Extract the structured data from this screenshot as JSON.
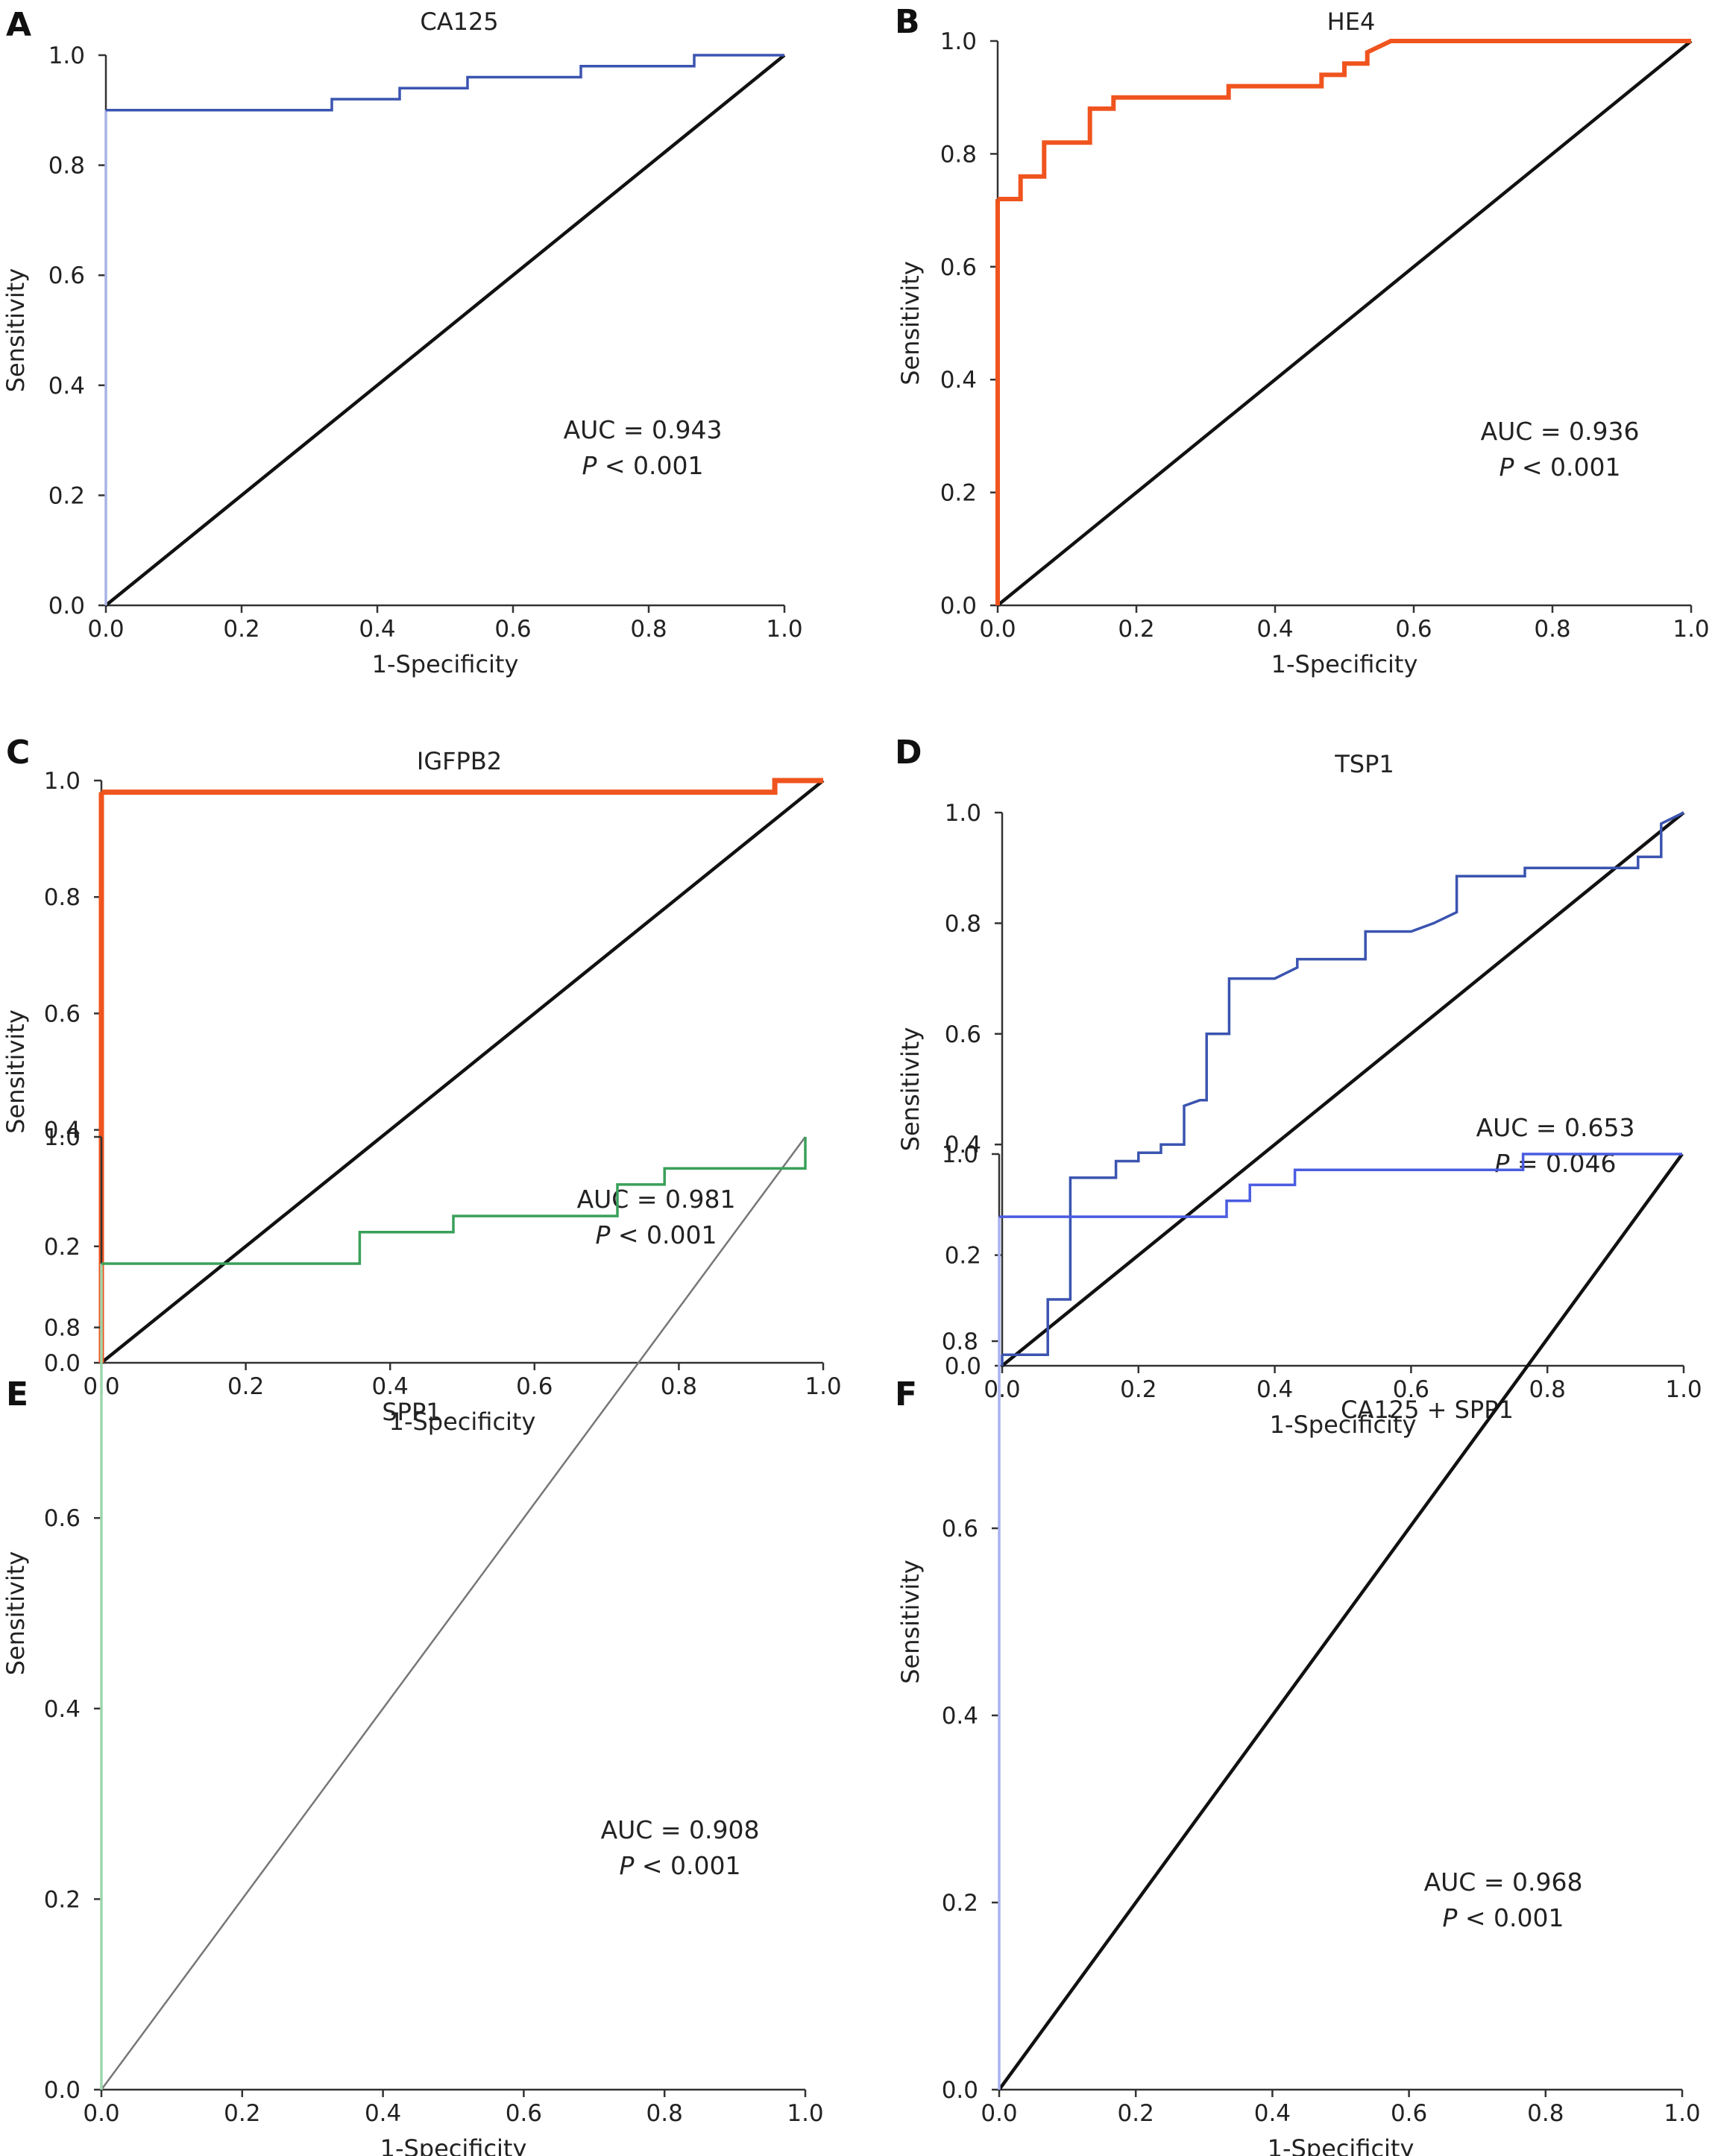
{
  "chart_data": [
    {
      "panel": "A",
      "type": "line",
      "title": "CA125",
      "xlabel": "1-Specificity",
      "ylabel": "Sensitivity",
      "xlim": [
        0,
        1
      ],
      "ylim": [
        0,
        1
      ],
      "xticks": [
        "0.0",
        "0.2",
        "0.4",
        "0.6",
        "0.8",
        "1.0"
      ],
      "yticks": [
        "0.0",
        "0.2",
        "0.4",
        "0.6",
        "0.8",
        "1.0"
      ],
      "auc_label": "AUC = 0.943",
      "p_prefix": "P",
      "p_suffix": " < 0.001",
      "curve_color": "#3b54b0",
      "vertical_color": "#a8b4e4",
      "curve_width": 3.5,
      "diagonal_color": "#111111",
      "roc": [
        [
          0,
          0
        ],
        [
          0,
          0.9
        ],
        [
          0.333,
          0.9
        ],
        [
          0.333,
          0.92
        ],
        [
          0.433,
          0.92
        ],
        [
          0.433,
          0.94
        ],
        [
          0.533,
          0.94
        ],
        [
          0.533,
          0.96
        ],
        [
          0.7,
          0.96
        ],
        [
          0.7,
          0.98
        ],
        [
          0.867,
          0.98
        ],
        [
          0.867,
          1.0
        ],
        [
          1.0,
          1.0
        ]
      ]
    },
    {
      "panel": "B",
      "type": "line",
      "title": "HE4",
      "xlabel": "1-Specificity",
      "ylabel": "Sensitivity",
      "xlim": [
        0,
        1
      ],
      "ylim": [
        0,
        1
      ],
      "xticks": [
        "0.0",
        "0.2",
        "0.4",
        "0.6",
        "0.8",
        "1.0"
      ],
      "yticks": [
        "0.0",
        "0.2",
        "0.4",
        "0.6",
        "0.8",
        "1.0"
      ],
      "auc_label": "AUC = 0.936",
      "p_prefix": "P",
      "p_suffix": " < 0.001",
      "curve_color": "#f0541e",
      "vertical_color": "#f0541e",
      "curve_width": 6,
      "diagonal_color": "#111111",
      "roc": [
        [
          0,
          0
        ],
        [
          0,
          0.72
        ],
        [
          0.033,
          0.72
        ],
        [
          0.033,
          0.76
        ],
        [
          0.067,
          0.76
        ],
        [
          0.067,
          0.82
        ],
        [
          0.133,
          0.82
        ],
        [
          0.133,
          0.88
        ],
        [
          0.167,
          0.88
        ],
        [
          0.167,
          0.9
        ],
        [
          0.333,
          0.9
        ],
        [
          0.333,
          0.92
        ],
        [
          0.467,
          0.92
        ],
        [
          0.467,
          0.94
        ],
        [
          0.5,
          0.94
        ],
        [
          0.5,
          0.96
        ],
        [
          0.533,
          0.96
        ],
        [
          0.533,
          0.98
        ],
        [
          0.567,
          1.0
        ],
        [
          1.0,
          1.0
        ]
      ]
    },
    {
      "panel": "C",
      "type": "line",
      "title": "IGFPB2",
      "xlabel": "1-Specificity",
      "ylabel": "Sensitivity",
      "xlim": [
        0,
        1
      ],
      "ylim": [
        0,
        1
      ],
      "xticks": [
        "0.0",
        "0.2",
        "0.4",
        "0.6",
        "0.8",
        "1.0"
      ],
      "yticks": [
        "0.0",
        "0.2",
        "0.4",
        "0.6",
        "0.8",
        "1.0"
      ],
      "auc_label": "AUC = 0.981",
      "p_prefix": "P",
      "p_suffix": " < 0.001",
      "curve_color": "#f0541e",
      "vertical_color": "#f0541e",
      "curve_width": 7,
      "diagonal_color": "#111111",
      "roc": [
        [
          0,
          0
        ],
        [
          0,
          0.98
        ],
        [
          0.933,
          0.98
        ],
        [
          0.933,
          1.0
        ],
        [
          1.0,
          1.0
        ]
      ]
    },
    {
      "panel": "D",
      "type": "line",
      "title": "TSP1",
      "xlabel": "1-Specificity",
      "ylabel": "Sensitivity",
      "xlim": [
        0,
        1
      ],
      "ylim": [
        0,
        1
      ],
      "xticks": [
        "0.0",
        "0.2",
        "0.4",
        "0.6",
        "0.8",
        "1.0"
      ],
      "yticks": [
        "0.0",
        "0.2",
        "0.4",
        "0.6",
        "0.8",
        "1.0"
      ],
      "auc_label": "AUC = 0.653",
      "p_prefix": "P",
      "p_suffix": " = 0.046",
      "curve_color": "#3b54b0",
      "vertical_color": "#3b54b0",
      "curve_width": 3.5,
      "diagonal_color": "#111111",
      "roc": [
        [
          0,
          0
        ],
        [
          0,
          0.02
        ],
        [
          0.067,
          0.02
        ],
        [
          0.067,
          0.12
        ],
        [
          0.1,
          0.12
        ],
        [
          0.1,
          0.34
        ],
        [
          0.167,
          0.34
        ],
        [
          0.167,
          0.37
        ],
        [
          0.2,
          0.37
        ],
        [
          0.2,
          0.385
        ],
        [
          0.233,
          0.385
        ],
        [
          0.233,
          0.4
        ],
        [
          0.267,
          0.4
        ],
        [
          0.267,
          0.47
        ],
        [
          0.29,
          0.48
        ],
        [
          0.3,
          0.48
        ],
        [
          0.3,
          0.6
        ],
        [
          0.333,
          0.6
        ],
        [
          0.333,
          0.7
        ],
        [
          0.4,
          0.7
        ],
        [
          0.433,
          0.72
        ],
        [
          0.433,
          0.735
        ],
        [
          0.533,
          0.735
        ],
        [
          0.533,
          0.785
        ],
        [
          0.6,
          0.785
        ],
        [
          0.633,
          0.8
        ],
        [
          0.633,
          0.8
        ],
        [
          0.667,
          0.82
        ],
        [
          0.667,
          0.885
        ],
        [
          0.767,
          0.885
        ],
        [
          0.767,
          0.9
        ],
        [
          0.933,
          0.9
        ],
        [
          0.933,
          0.92
        ],
        [
          0.967,
          0.92
        ],
        [
          0.967,
          0.98
        ],
        [
          1.0,
          1.0
        ]
      ]
    },
    {
      "panel": "E",
      "type": "line",
      "title": "SPP1",
      "xlabel": "1-Specificity",
      "ylabel": "Sensitivity",
      "xlim": [
        0,
        1
      ],
      "ylim": [
        0,
        1
      ],
      "xticks": [
        "0.0",
        "0.2",
        "0.4",
        "0.6",
        "0.8",
        "1.0"
      ],
      "yticks": [
        "0.0",
        "0.2",
        "0.4",
        "0.6",
        "0.8",
        "1.0"
      ],
      "auc_label": "AUC = 0.908",
      "p_prefix": "P",
      "p_suffix": " < 0.001",
      "curve_color": "#3aa05a",
      "vertical_color": "#9ed6ac",
      "curve_width": 3.5,
      "diagonal_color": "#777777",
      "roc": [
        [
          0,
          0
        ],
        [
          0,
          0.867
        ],
        [
          0.367,
          0.867
        ],
        [
          0.367,
          0.9
        ],
        [
          0.5,
          0.9
        ],
        [
          0.5,
          0.917
        ],
        [
          0.733,
          0.917
        ],
        [
          0.733,
          0.95
        ],
        [
          0.8,
          0.95
        ],
        [
          0.8,
          0.967
        ],
        [
          1.0,
          0.967
        ],
        [
          1.0,
          1.0
        ]
      ]
    },
    {
      "panel": "F",
      "type": "line",
      "title": "CA125 + SPP1",
      "xlabel": "1-Specificity",
      "ylabel": "Sensitivity",
      "xlim": [
        0,
        1
      ],
      "ylim": [
        0,
        1
      ],
      "xticks": [
        "0.0",
        "0.2",
        "0.4",
        "0.6",
        "0.8",
        "1.0"
      ],
      "yticks": [
        "0.0",
        "0.2",
        "0.4",
        "0.6",
        "0.8",
        "1.0"
      ],
      "auc_label": "AUC = 0.968",
      "p_prefix": "P",
      "p_suffix": " < 0.001",
      "curve_color": "#4a5ce0",
      "vertical_color": "#a8b2f2",
      "curve_width": 3.5,
      "diagonal_color": "#111111",
      "roc": [
        [
          0,
          0
        ],
        [
          0,
          0.933
        ],
        [
          0.333,
          0.933
        ],
        [
          0.333,
          0.95
        ],
        [
          0.367,
          0.95
        ],
        [
          0.367,
          0.967
        ],
        [
          0.433,
          0.967
        ],
        [
          0.433,
          0.983
        ],
        [
          0.767,
          0.983
        ],
        [
          0.767,
          1.0
        ],
        [
          1.0,
          1.0
        ]
      ]
    }
  ]
}
